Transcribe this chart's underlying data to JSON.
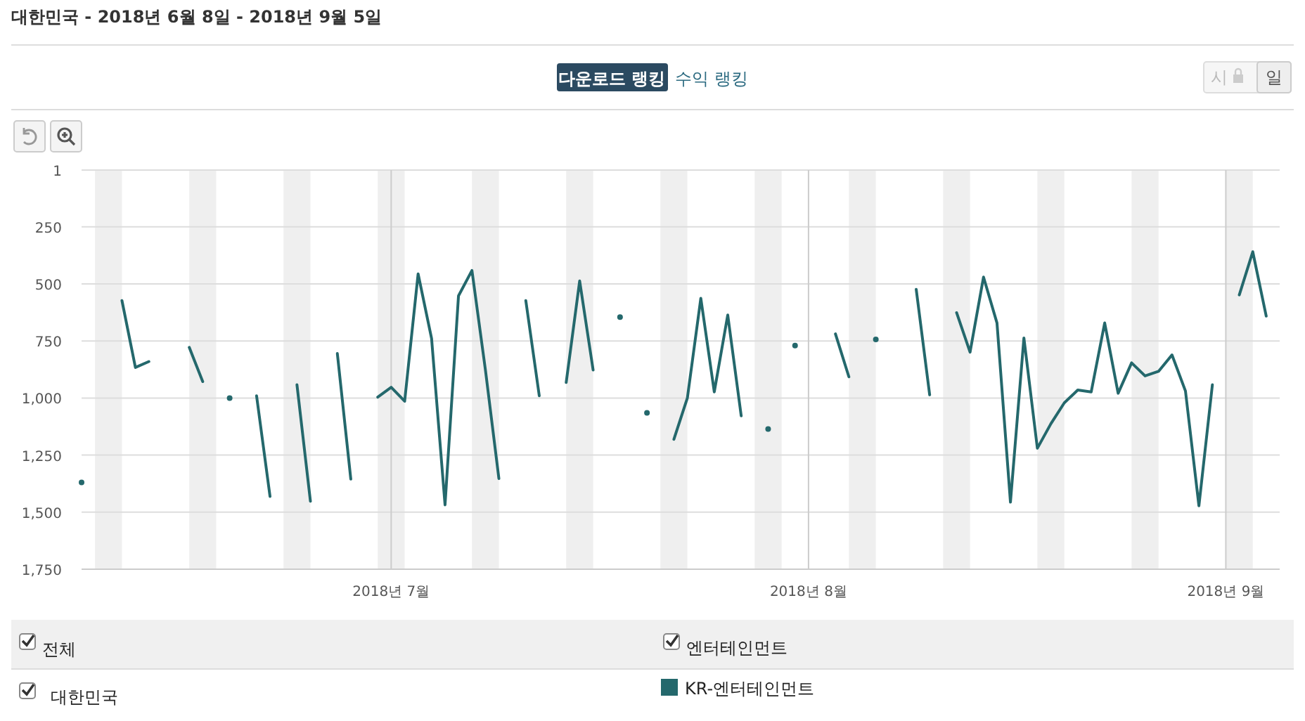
{
  "chart_data": {
    "type": "line",
    "title": "대한민국 - 2018년 6월 8일 - 2018년 9월 5일",
    "annotations": [
      "다운로드 랭킹",
      "수익 랭킹",
      "시",
      "일",
      "전체",
      "엔터테인먼트",
      "대한민국"
    ],
    "x": [
      "2018-06-08",
      "2018-06-09",
      "2018-06-10",
      "2018-06-11",
      "2018-06-12",
      "2018-06-13",
      "2018-06-14",
      "2018-06-15",
      "2018-06-16",
      "2018-06-17",
      "2018-06-18",
      "2018-06-19",
      "2018-06-20",
      "2018-06-21",
      "2018-06-22",
      "2018-06-23",
      "2018-06-24",
      "2018-06-25",
      "2018-06-26",
      "2018-06-27",
      "2018-06-28",
      "2018-06-29",
      "2018-06-30",
      "2018-07-01",
      "2018-07-02",
      "2018-07-03",
      "2018-07-04",
      "2018-07-05",
      "2018-07-06",
      "2018-07-07",
      "2018-07-08",
      "2018-07-09",
      "2018-07-10",
      "2018-07-11",
      "2018-07-12",
      "2018-07-13",
      "2018-07-14",
      "2018-07-15",
      "2018-07-16",
      "2018-07-17",
      "2018-07-18",
      "2018-07-19",
      "2018-07-20",
      "2018-07-21",
      "2018-07-22",
      "2018-07-23",
      "2018-07-24",
      "2018-07-25",
      "2018-07-26",
      "2018-07-27",
      "2018-07-28",
      "2018-07-29",
      "2018-07-30",
      "2018-07-31",
      "2018-08-01",
      "2018-08-02",
      "2018-08-03",
      "2018-08-04",
      "2018-08-05",
      "2018-08-06",
      "2018-08-07",
      "2018-08-08",
      "2018-08-09",
      "2018-08-10",
      "2018-08-11",
      "2018-08-12",
      "2018-08-13",
      "2018-08-14",
      "2018-08-15",
      "2018-08-16",
      "2018-08-17",
      "2018-08-18",
      "2018-08-19",
      "2018-08-20",
      "2018-08-21",
      "2018-08-22",
      "2018-08-23",
      "2018-08-24",
      "2018-08-25",
      "2018-08-26",
      "2018-08-27",
      "2018-08-28",
      "2018-08-29",
      "2018-08-30",
      "2018-08-31",
      "2018-09-01",
      "2018-09-02",
      "2018-09-03",
      "2018-09-04"
    ],
    "series": [
      {
        "name": "KR-엔터테인먼트",
        "color": "#24686c",
        "values": [
          1370,
          null,
          null,
          573,
          866,
          840,
          null,
          null,
          778,
          928,
          null,
          1000,
          null,
          990,
          1431,
          null,
          942,
          1452,
          null,
          805,
          1355,
          null,
          996,
          953,
          1014,
          456,
          739,
          1468,
          552,
          441,
          877,
          1353,
          null,
          573,
          990,
          null,
          932,
          487,
          877,
          null,
          645,
          null,
          1065,
          null,
          1181,
          1000,
          563,
          973,
          636,
          1078,
          null,
          1136,
          null,
          770,
          null,
          null,
          719,
          907,
          null,
          743,
          null,
          null,
          524,
          986,
          null,
          626,
          799,
          470,
          671,
          1456,
          737,
          1220,
          1113,
          1021,
          965,
          973,
          671,
          979,
          846,
          903,
          883,
          811,
          969,
          1472,
          942,
          null,
          548,
          359,
          641
        ]
      }
    ],
    "xlim": [
      "2018-06-08",
      "2018-09-05"
    ],
    "xticks": [
      {
        "value": "2018-07-01",
        "label": "2018년 7월"
      },
      {
        "value": "2018-08-01",
        "label": "2018년 8월"
      },
      {
        "value": "2018-09-01",
        "label": "2018년 9월"
      }
    ],
    "ylim": [
      1750,
      1
    ],
    "yticks": [
      1,
      250,
      500,
      750,
      {
        "value": 1000,
        "label": "1,000"
      },
      {
        "value": 1250,
        "label": "1,250"
      },
      {
        "value": 1500,
        "label": "1,500"
      },
      {
        "value": 1750,
        "label": "1,750"
      }
    ],
    "bands": [
      {
        "axis": "x",
        "from": "2018-06-09",
        "to": "2018-06-11",
        "color": "#efefef"
      },
      {
        "axis": "x",
        "from": "2018-06-16",
        "to": "2018-06-18",
        "color": "#efefef"
      },
      {
        "axis": "x",
        "from": "2018-06-23",
        "to": "2018-06-25",
        "color": "#efefef"
      },
      {
        "axis": "x",
        "from": "2018-06-30",
        "to": "2018-07-02",
        "color": "#efefef"
      },
      {
        "axis": "x",
        "from": "2018-07-07",
        "to": "2018-07-09",
        "color": "#efefef"
      },
      {
        "axis": "x",
        "from": "2018-07-14",
        "to": "2018-07-16",
        "color": "#efefef"
      },
      {
        "axis": "x",
        "from": "2018-07-21",
        "to": "2018-07-23",
        "color": "#efefef"
      },
      {
        "axis": "x",
        "from": "2018-07-28",
        "to": "2018-07-30",
        "color": "#efefef"
      },
      {
        "axis": "x",
        "from": "2018-08-04",
        "to": "2018-08-06",
        "color": "#efefef"
      },
      {
        "axis": "x",
        "from": "2018-08-11",
        "to": "2018-08-13",
        "color": "#efefef"
      },
      {
        "axis": "x",
        "from": "2018-08-18",
        "to": "2018-08-20",
        "color": "#efefef"
      },
      {
        "axis": "x",
        "from": "2018-08-25",
        "to": "2018-08-27",
        "color": "#efefef"
      },
      {
        "axis": "x",
        "from": "2018-09-01",
        "to": "2018-09-03",
        "color": "#efefef"
      }
    ],
    "grid": true,
    "legend": "bottom",
    "line_style": "solid"
  }
}
